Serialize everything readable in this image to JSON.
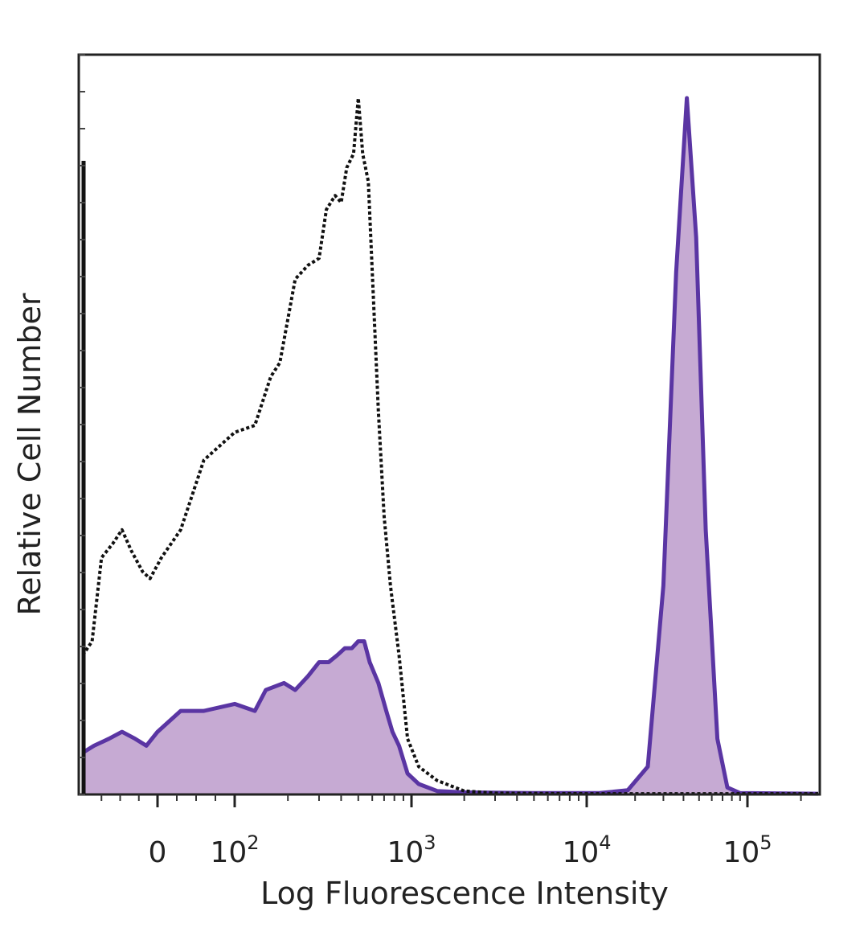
{
  "chart_data": {
    "type": "area",
    "title": "",
    "xlabel": "Log Fluorescence Intensity",
    "ylabel": "Relative Cell Number",
    "x_scale": "biexponential",
    "xlim": [
      -200,
      250000
    ],
    "ylim": [
      0,
      100
    ],
    "grid": false,
    "legend": "none",
    "x_ticks": [
      {
        "label": "0",
        "value": 0
      },
      {
        "label": "10",
        "sup": "2",
        "value": 100
      },
      {
        "label": "10",
        "sup": "3",
        "value": 1000
      },
      {
        "label": "10",
        "sup": "4",
        "value": 10000
      },
      {
        "label": "10",
        "sup": "5",
        "value": 100000
      }
    ],
    "series": [
      {
        "style": "dotted-outline",
        "color": "#111111",
        "points": [
          [
            -200,
            20
          ],
          [
            -175,
            22
          ],
          [
            -150,
            34
          ],
          [
            -120,
            36
          ],
          [
            -95,
            38
          ],
          [
            -70,
            35
          ],
          [
            -40,
            32
          ],
          [
            -20,
            31
          ],
          [
            5,
            34
          ],
          [
            30,
            38
          ],
          [
            60,
            48
          ],
          [
            100,
            52
          ],
          [
            130,
            53
          ],
          [
            160,
            60
          ],
          [
            180,
            62
          ],
          [
            220,
            74
          ],
          [
            260,
            76
          ],
          [
            300,
            77
          ],
          [
            330,
            84
          ],
          [
            370,
            86
          ],
          [
            400,
            85
          ],
          [
            430,
            90
          ],
          [
            470,
            92
          ],
          [
            500,
            100
          ],
          [
            530,
            92
          ],
          [
            570,
            88
          ],
          [
            600,
            75
          ],
          [
            650,
            55
          ],
          [
            700,
            40
          ],
          [
            760,
            30
          ],
          [
            850,
            20
          ],
          [
            950,
            8
          ],
          [
            1100,
            4
          ],
          [
            1400,
            2
          ],
          [
            2000,
            0.5
          ],
          [
            3000,
            0.2
          ],
          [
            10000,
            0.1
          ],
          [
            250000,
            0.1
          ]
        ]
      },
      {
        "style": "filled",
        "color": "#5a35a3",
        "fill": "#c6aad3",
        "points": [
          [
            -200,
            6
          ],
          [
            -170,
            7
          ],
          [
            -130,
            8
          ],
          [
            -95,
            9
          ],
          [
            -60,
            8
          ],
          [
            -30,
            7
          ],
          [
            0,
            9
          ],
          [
            30,
            12
          ],
          [
            60,
            12
          ],
          [
            100,
            13
          ],
          [
            130,
            12
          ],
          [
            150,
            15
          ],
          [
            190,
            16
          ],
          [
            220,
            15
          ],
          [
            260,
            17
          ],
          [
            300,
            19
          ],
          [
            340,
            19
          ],
          [
            380,
            20
          ],
          [
            420,
            21
          ],
          [
            460,
            21
          ],
          [
            500,
            22
          ],
          [
            540,
            22
          ],
          [
            580,
            19
          ],
          [
            650,
            16
          ],
          [
            720,
            12
          ],
          [
            780,
            9
          ],
          [
            850,
            7
          ],
          [
            950,
            3
          ],
          [
            1100,
            1.5
          ],
          [
            1400,
            0.5
          ],
          [
            2000,
            0.3
          ],
          [
            5000,
            0.2
          ],
          [
            12000,
            0.2
          ],
          [
            18000,
            0.6
          ],
          [
            24000,
            4
          ],
          [
            30000,
            30
          ],
          [
            36000,
            75
          ],
          [
            42000,
            100
          ],
          [
            48000,
            80
          ],
          [
            55000,
            38
          ],
          [
            65000,
            8
          ],
          [
            75000,
            1
          ],
          [
            90000,
            0.2
          ],
          [
            250000,
            0.1
          ]
        ]
      }
    ]
  }
}
